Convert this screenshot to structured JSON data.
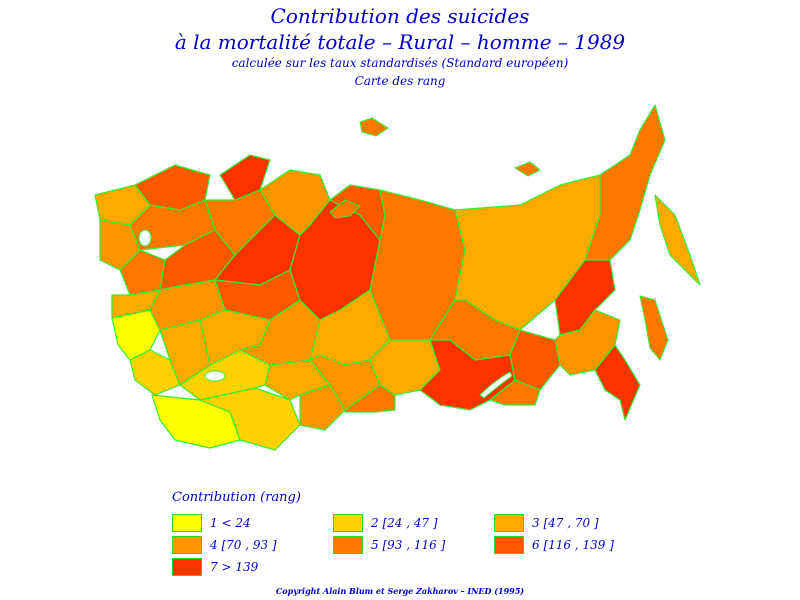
{
  "title": {
    "line1": "Contribution des suicides",
    "line2": "à la mortalité totale  –  Rural  –  homme  –  1989",
    "line3": "calculée sur les taux standardisés (Standard européen)",
    "line4": "Carte des rang"
  },
  "legend": {
    "title": "Contribution  (rang)",
    "classes": [
      {
        "label": "1  <  24",
        "color": "#ffff00"
      },
      {
        "label": "2  [24  ,  47 ]",
        "color": "#ffd200"
      },
      {
        "label": "3  [47  ,  70 ]",
        "color": "#ffaa00"
      },
      {
        "label": "4  [70  ,  93 ]",
        "color": "#ff9600"
      },
      {
        "label": "5  [93  ,  116 ]",
        "color": "#ff7800"
      },
      {
        "label": "6  [116  ,  139 ]",
        "color": "#ff5a00"
      },
      {
        "label": "7  >  139",
        "color": "#ff3200"
      }
    ]
  },
  "map": {
    "border_color": "#33ee33"
  },
  "copyright": "Copyright  Alain  Blum  et  Serge  Zakharov  –  INED (1995)"
}
